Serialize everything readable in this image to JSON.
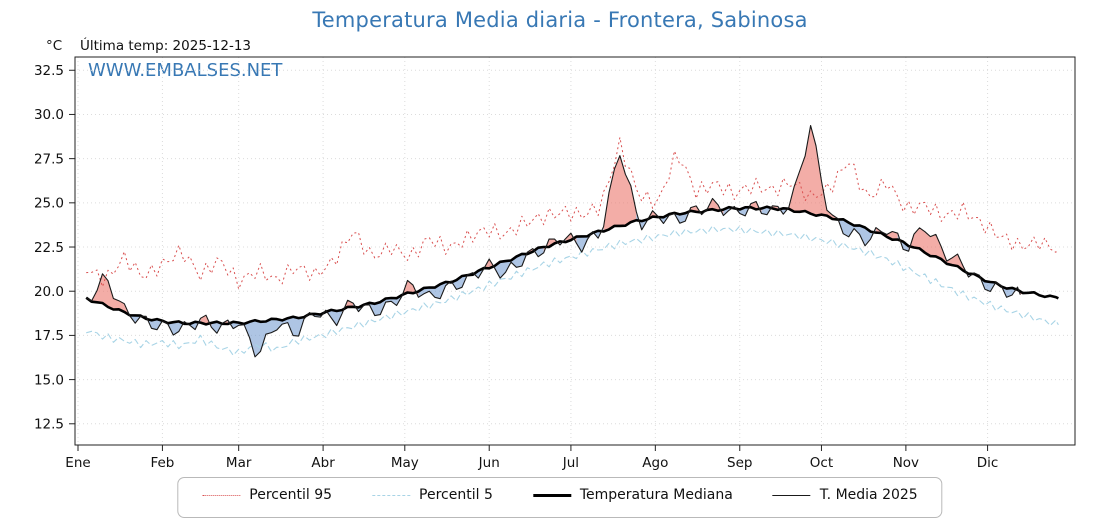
{
  "header": {
    "unit_label": "°C",
    "last_temp_label": "Última temp: 2025-12-13",
    "watermark": "WWW.EMBALSES.NET"
  },
  "chart_data": {
    "type": "line",
    "title": "Temperatura Media diaria - Frontera, Sabinosa",
    "x_tick_labels": [
      "Ene",
      "Feb",
      "Mar",
      "Abr",
      "May",
      "Jun",
      "Jul",
      "Ago",
      "Sep",
      "Oct",
      "Nov",
      "Dic"
    ],
    "month_start_days": [
      0,
      31,
      59,
      90,
      120,
      151,
      181,
      212,
      243,
      273,
      304,
      334
    ],
    "y_ticks": [
      "12.5",
      "15.0",
      "17.5",
      "20.0",
      "22.5",
      "25.0",
      "27.5",
      "30.0",
      "32.5"
    ],
    "ylim": [
      11.3,
      33.25
    ],
    "xlim_days": [
      0,
      365
    ],
    "sample_start_day": 3,
    "sample_step_days": 7,
    "legend_position": "bottom",
    "grid": true,
    "series": [
      {
        "name": "Percentil 95",
        "style": "dotted",
        "color": "#d94f4f",
        "width": 1,
        "values": [
          21.3,
          20.6,
          21.9,
          20.8,
          21.5,
          22.3,
          20.9,
          21.8,
          20.5,
          21.2,
          20.6,
          21.4,
          20.9,
          21.7,
          23.4,
          21.9,
          22.5,
          21.9,
          23.0,
          22.4,
          23.0,
          23.5,
          23.2,
          23.9,
          24.2,
          24.5,
          24.3,
          24.8,
          28.3,
          25.4,
          25.0,
          27.9,
          25.6,
          26.1,
          25.5,
          26.0,
          25.7,
          26.2,
          25.3,
          25.8,
          27.4,
          25.2,
          26.2,
          24.6,
          24.9,
          24.2,
          24.6,
          23.8,
          23.1,
          22.5,
          22.8,
          22.3
        ]
      },
      {
        "name": "Percentil 5",
        "style": "dashed",
        "color": "#a8d4e6",
        "width": 1.1,
        "values": [
          17.8,
          17.4,
          17.2,
          17.0,
          17.1,
          16.9,
          17.3,
          16.8,
          16.5,
          17.0,
          16.7,
          17.2,
          17.4,
          17.7,
          18.0,
          18.3,
          18.6,
          18.9,
          19.2,
          19.5,
          19.9,
          20.3,
          20.7,
          21.1,
          21.5,
          21.8,
          22.1,
          22.4,
          22.7,
          22.9,
          23.1,
          23.3,
          23.4,
          23.5,
          23.5,
          23.4,
          23.3,
          23.2,
          23.0,
          22.8,
          22.5,
          22.2,
          21.8,
          21.3,
          20.8,
          20.3,
          19.8,
          19.4,
          19.0,
          18.7,
          18.4,
          18.1
        ]
      },
      {
        "name": "Temperatura Mediana",
        "style": "solid",
        "color": "#000000",
        "width": 2.6,
        "values": [
          19.6,
          19.2,
          18.8,
          18.5,
          18.3,
          18.2,
          18.2,
          18.2,
          18.2,
          18.3,
          18.4,
          18.5,
          18.7,
          18.9,
          19.1,
          19.3,
          19.6,
          19.9,
          20.2,
          20.5,
          20.9,
          21.3,
          21.7,
          22.1,
          22.5,
          22.8,
          23.1,
          23.4,
          23.7,
          24.0,
          24.2,
          24.4,
          24.5,
          24.6,
          24.7,
          24.7,
          24.7,
          24.6,
          24.4,
          24.2,
          23.9,
          23.5,
          23.1,
          22.7,
          22.2,
          21.7,
          21.2,
          20.7,
          20.3,
          20.0,
          19.8,
          19.6
        ]
      },
      {
        "name": "T. Media 2025",
        "style": "solid",
        "color": "#1a1a1a",
        "width": 1.1,
        "values": [
          19.4,
          20.8,
          18.9,
          18.3,
          18.0,
          17.8,
          18.4,
          17.9,
          18.3,
          16.4,
          18.2,
          17.6,
          18.9,
          18.3,
          19.4,
          18.8,
          19.2,
          20.4,
          19.6,
          20.2,
          20.6,
          21.5,
          21.0,
          21.9,
          22.4,
          23.1,
          22.6,
          23.3,
          28.0,
          23.8,
          24.3,
          24.0,
          24.6,
          24.9,
          24.4,
          24.8,
          24.5,
          24.9,
          29.3,
          24.2,
          23.3,
          22.9,
          23.6,
          22.4,
          23.7,
          22.2,
          21.5,
          20.4,
          20.1,
          19.8
        ]
      }
    ],
    "fill_between": {
      "upper": "T. Media 2025",
      "lower": "Temperatura Mediana",
      "above_color": "rgba(235,118,108,0.6)",
      "below_color": "rgba(108,150,205,0.55)"
    }
  }
}
